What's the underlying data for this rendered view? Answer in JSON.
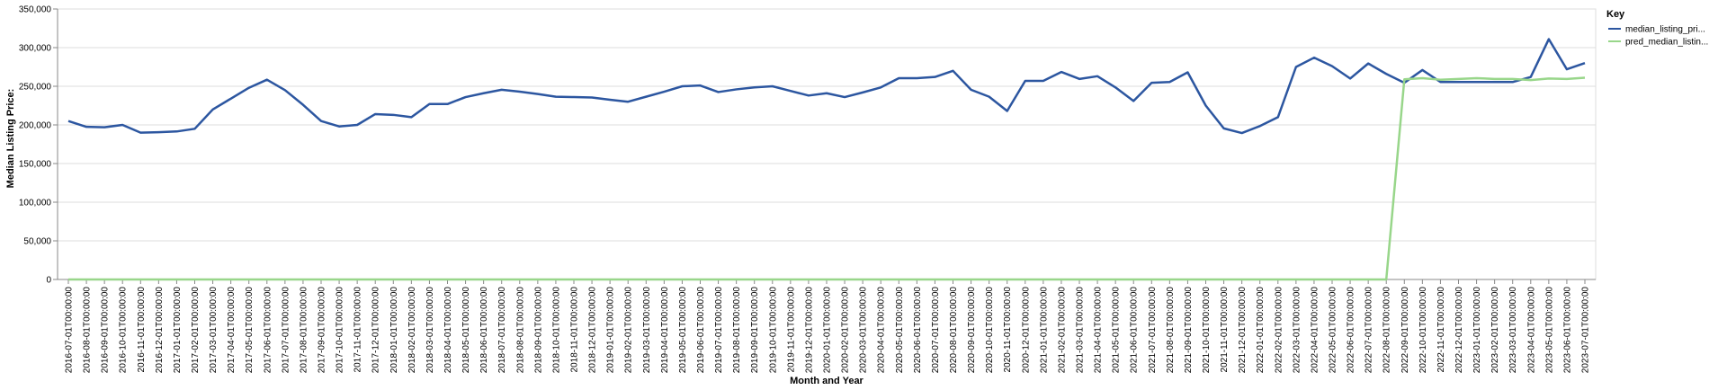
{
  "chart_data": {
    "type": "line",
    "xlabel": "Month and Year",
    "ylabel": "Median Listing Price:",
    "ylim": [
      0,
      350000
    ],
    "yticks": [
      0,
      50000,
      100000,
      150000,
      200000,
      250000,
      300000,
      350000
    ],
    "ytick_labels": [
      "0",
      "50,000",
      "100,000",
      "150,000",
      "200,000",
      "250,000",
      "300,000",
      "350,000"
    ],
    "grid": true,
    "legend": {
      "title": "Key",
      "placement": "right"
    },
    "x": [
      "2016-07-01T00:00:00",
      "2016-08-01T00:00:00",
      "2016-09-01T00:00:00",
      "2016-10-01T00:00:00",
      "2016-11-01T00:00:00",
      "2016-12-01T00:00:00",
      "2017-01-01T00:00:00",
      "2017-02-01T00:00:00",
      "2017-03-01T00:00:00",
      "2017-04-01T00:00:00",
      "2017-05-01T00:00:00",
      "2017-06-01T00:00:00",
      "2017-07-01T00:00:00",
      "2017-08-01T00:00:00",
      "2017-09-01T00:00:00",
      "2017-10-01T00:00:00",
      "2017-11-01T00:00:00",
      "2017-12-01T00:00:00",
      "2018-01-01T00:00:00",
      "2018-02-01T00:00:00",
      "2018-03-01T00:00:00",
      "2018-04-01T00:00:00",
      "2018-05-01T00:00:00",
      "2018-06-01T00:00:00",
      "2018-07-01T00:00:00",
      "2018-08-01T00:00:00",
      "2018-09-01T00:00:00",
      "2018-10-01T00:00:00",
      "2018-11-01T00:00:00",
      "2018-12-01T00:00:00",
      "2019-01-01T00:00:00",
      "2019-02-01T00:00:00",
      "2019-03-01T00:00:00",
      "2019-04-01T00:00:00",
      "2019-05-01T00:00:00",
      "2019-06-01T00:00:00",
      "2019-07-01T00:00:00",
      "2019-08-01T00:00:00",
      "2019-09-01T00:00:00",
      "2019-10-01T00:00:00",
      "2019-11-01T00:00:00",
      "2019-12-01T00:00:00",
      "2020-01-01T00:00:00",
      "2020-02-01T00:00:00",
      "2020-03-01T00:00:00",
      "2020-04-01T00:00:00",
      "2020-05-01T00:00:00",
      "2020-06-01T00:00:00",
      "2020-07-01T00:00:00",
      "2020-08-01T00:00:00",
      "2020-09-01T00:00:00",
      "2020-10-01T00:00:00",
      "2020-11-01T00:00:00",
      "2020-12-01T00:00:00",
      "2021-01-01T00:00:00",
      "2021-02-01T00:00:00",
      "2021-03-01T00:00:00",
      "2021-04-01T00:00:00",
      "2021-05-01T00:00:00",
      "2021-06-01T00:00:00",
      "2021-07-01T00:00:00",
      "2021-08-01T00:00:00",
      "2021-09-01T00:00:00",
      "2021-10-01T00:00:00",
      "2021-11-01T00:00:00",
      "2021-12-01T00:00:00",
      "2022-01-01T00:00:00",
      "2022-02-01T00:00:00",
      "2022-03-01T00:00:00",
      "2022-04-01T00:00:00",
      "2022-05-01T00:00:00",
      "2022-06-01T00:00:00",
      "2022-07-01T00:00:00",
      "2022-08-01T00:00:00",
      "2022-09-01T00:00:00",
      "2022-10-01T00:00:00",
      "2022-11-01T00:00:00",
      "2022-12-01T00:00:00",
      "2023-01-01T00:00:00",
      "2023-02-01T00:00:00",
      "2023-03-01T00:00:00",
      "2023-04-01T00:00:00",
      "2023-05-01T00:00:00",
      "2023-06-01T00:00:00",
      "2023-07-01T00:00:00"
    ],
    "series": [
      {
        "name": "median_listing_pri...",
        "color": "#2c56a0",
        "values": [
          205000,
          197500,
          197000,
          200000,
          190000,
          190500,
          191500,
          195000,
          220000,
          234000,
          248000,
          258500,
          245000,
          226000,
          205000,
          198000,
          200000,
          214000,
          213000,
          210000,
          227000,
          227000,
          236000,
          241000,
          245500,
          243000,
          240000,
          236500,
          236000,
          235500,
          232500,
          230000,
          236500,
          243000,
          250000,
          251000,
          242500,
          246000,
          248500,
          250000,
          244000,
          238000,
          241000,
          236000,
          242000,
          248500,
          260500,
          260500,
          262000,
          270000,
          245500,
          236500,
          218000,
          257000,
          257000,
          268500,
          259500,
          263000,
          248500,
          231000,
          254500,
          255500,
          268000,
          225000,
          195500,
          189500,
          198500,
          210000,
          275000,
          287000,
          276000,
          260000,
          279500,
          266000,
          254500,
          271000,
          255500,
          255500,
          255500,
          255500,
          255500,
          262000,
          311000,
          272000,
          280000
        ]
      },
      {
        "name": "pred_median_listin...",
        "color": "#98d68a",
        "values": [
          0,
          0,
          0,
          0,
          0,
          0,
          0,
          0,
          0,
          0,
          0,
          0,
          0,
          0,
          0,
          0,
          0,
          0,
          0,
          0,
          0,
          0,
          0,
          0,
          0,
          0,
          0,
          0,
          0,
          0,
          0,
          0,
          0,
          0,
          0,
          0,
          0,
          0,
          0,
          0,
          0,
          0,
          0,
          0,
          0,
          0,
          0,
          0,
          0,
          0,
          0,
          0,
          0,
          0,
          0,
          0,
          0,
          0,
          0,
          0,
          0,
          0,
          0,
          0,
          0,
          0,
          0,
          0,
          0,
          0,
          0,
          0,
          0,
          0,
          259000,
          260500,
          258500,
          259500,
          260500,
          259500,
          259500,
          258000,
          260000,
          259500,
          261000
        ]
      }
    ]
  }
}
